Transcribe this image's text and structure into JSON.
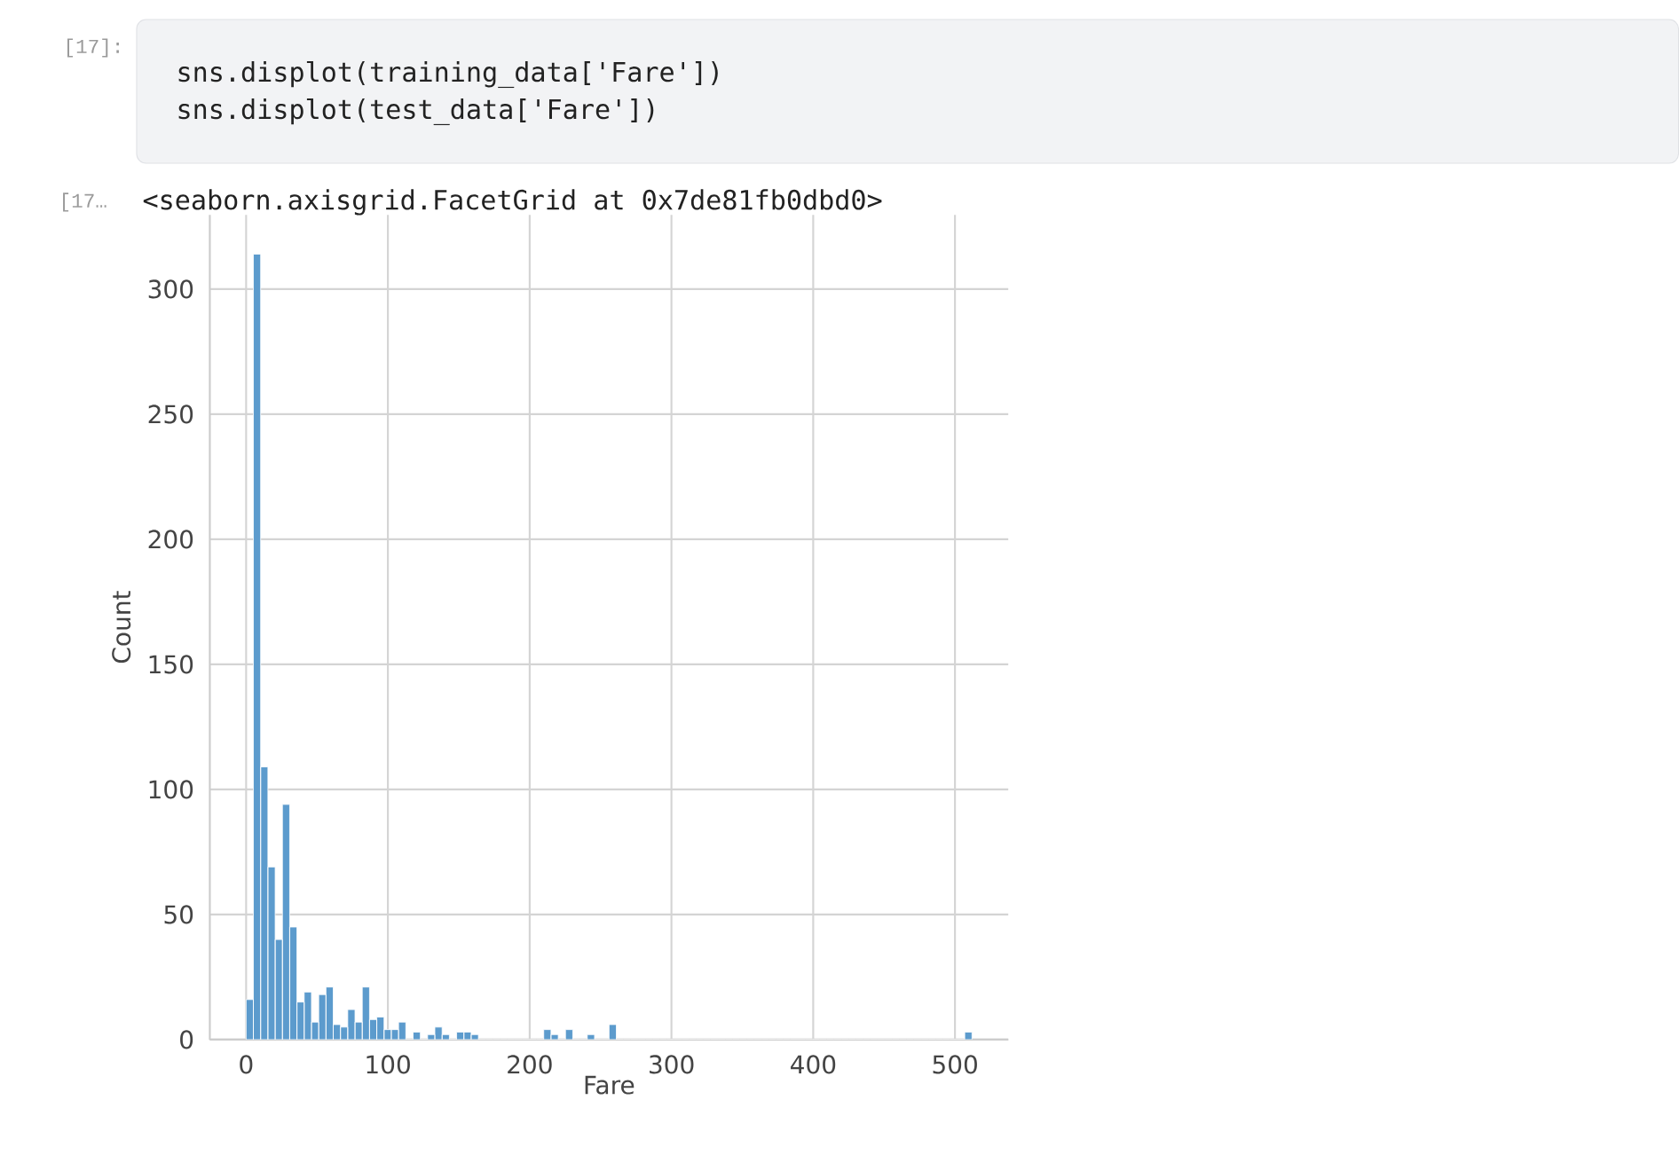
{
  "chart_data": {
    "type": "histogram",
    "xlabel": "Fare",
    "ylabel": "Count",
    "color": "#5c9bcd",
    "bins": [
      0,
      5.12,
      10.24,
      15.36,
      20.48,
      25.6,
      30.72,
      35.84,
      40.96,
      46.08,
      51.2,
      56.32,
      61.44,
      66.56,
      71.68,
      76.8,
      81.92,
      87.04,
      92.16,
      97.28,
      102.4,
      107.52,
      112.64,
      117.76,
      122.88,
      128,
      133.12,
      138.24,
      143.36,
      148.48,
      153.6,
      158.72,
      163.84,
      168.96,
      174.08,
      179.2,
      184.32,
      189.44,
      194.56,
      199.68,
      204.8,
      209.92,
      215.04,
      220.16,
      225.28,
      230.4,
      235.52,
      240.64,
      245.76,
      250.88,
      256,
      261.12,
      266.24,
      271.36,
      276.48,
      281.6,
      286.72,
      291.84,
      296.96,
      302.08,
      307.2,
      312.32,
      317.44,
      322.56,
      327.68,
      332.8,
      337.92,
      343.04,
      348.16,
      353.28,
      358.4,
      363.52,
      368.64,
      373.76,
      378.88,
      384,
      389.12,
      394.24,
      399.36,
      404.48,
      409.6,
      414.72,
      419.84,
      424.96,
      430.08,
      435.2,
      440.32,
      445.44,
      450.56,
      455.68,
      460.8,
      465.92,
      471.04,
      476.16,
      481.28,
      486.4,
      491.52,
      496.64,
      501.76,
      506.88,
      512
    ],
    "values": [
      16,
      314,
      109,
      69,
      40,
      94,
      45,
      15,
      19,
      7,
      18,
      21,
      6,
      5,
      12,
      7,
      21,
      8,
      9,
      4,
      4,
      7,
      0,
      3,
      0,
      2,
      5,
      2,
      0,
      3,
      3,
      2,
      0,
      0,
      0,
      0,
      0,
      0,
      0,
      0,
      0,
      4,
      2,
      0,
      4,
      0,
      0,
      2,
      0,
      0,
      6,
      0,
      0,
      0,
      0,
      0,
      0,
      0,
      0,
      0,
      0,
      0,
      0,
      0,
      0,
      0,
      0,
      0,
      0,
      0,
      0,
      0,
      0,
      0,
      0,
      0,
      0,
      0,
      0,
      0,
      0,
      0,
      0,
      0,
      0,
      0,
      0,
      0,
      0,
      0,
      0,
      0,
      0,
      0,
      0,
      0,
      0,
      0,
      0,
      3
    ],
    "xlim": [
      -25.6,
      537.6
    ],
    "ylim": [
      0,
      329.7
    ],
    "xticks": [
      0,
      100,
      200,
      300,
      400,
      500
    ],
    "yticks": [
      0,
      50,
      100,
      150,
      200,
      250,
      300
    ],
    "grid": true,
    "annotations": [
      "[17]:",
      "sns.displot(training_data['Fare'])",
      "sns.displot(test_data['Fare'])",
      "[17…",
      "<seaborn.axisgrid.FacetGrid at 0x7de81fb0dbd0>"
    ]
  }
}
